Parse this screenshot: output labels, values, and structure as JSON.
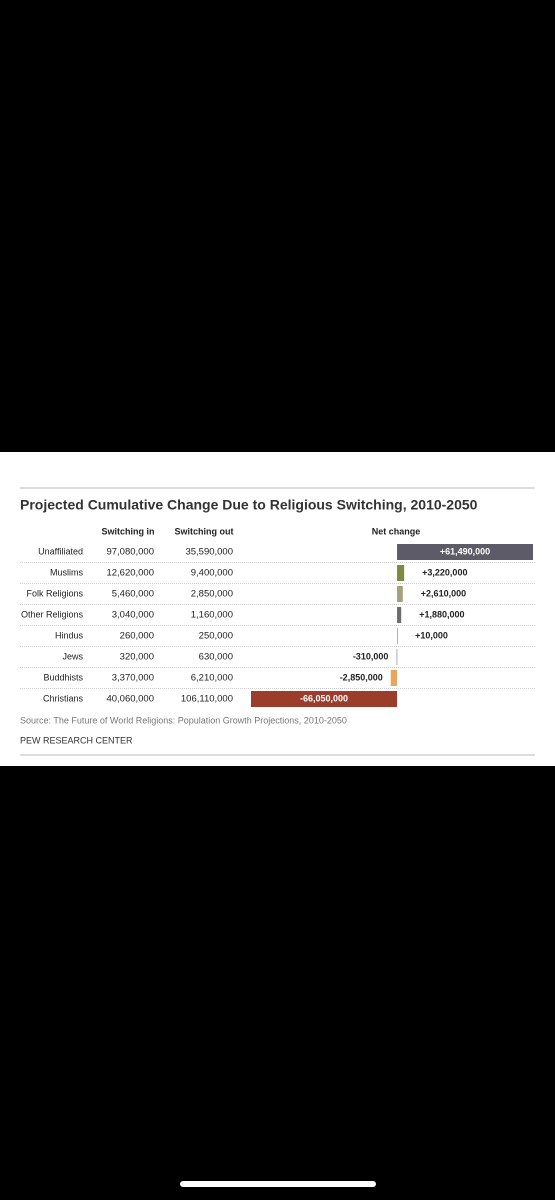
{
  "chart_data": {
    "type": "bar",
    "title": "Projected Cumulative Change Due to Religious Switching, 2010-2050",
    "categories": [
      "Unaffiliated",
      "Muslims",
      "Folk Religions",
      "Other Religions",
      "Hindus",
      "Jews",
      "Buddhists",
      "Christians"
    ],
    "series": [
      {
        "name": "Switching in",
        "values": [
          97080000,
          12620000,
          5460000,
          3040000,
          260000,
          320000,
          3370000,
          40060000
        ],
        "value_labels": [
          "97,080,000",
          "12,620,000",
          "5,460,000",
          "3,040,000",
          "260,000",
          "320,000",
          "3,370,000",
          "40,060,000"
        ]
      },
      {
        "name": "Switching out",
        "values": [
          35590000,
          9400000,
          2850000,
          1160000,
          250000,
          630000,
          6210000,
          106110000
        ],
        "value_labels": [
          "35,590,000",
          "9,400,000",
          "2,850,000",
          "1,160,000",
          "250,000",
          "630,000",
          "6,210,000",
          "106,110,000"
        ]
      },
      {
        "name": "Net change",
        "values": [
          61490000,
          3220000,
          2610000,
          1880000,
          10000,
          -310000,
          -2850000,
          -66050000
        ],
        "value_labels": [
          "+61,490,000",
          "+3,220,000",
          "+2,610,000",
          "+1,880,000",
          "+10,000",
          "-310,000",
          "-2,850,000",
          "-66,050,000"
        ],
        "colors": [
          "#5e5b68",
          "#7d8a40",
          "#a6a17b",
          "#6d6d70",
          "#b0b0b0",
          "#b0b0b0",
          "#e9a55c",
          "#9c3c2b"
        ]
      }
    ],
    "xlim": [
      -66050000,
      61490000
    ],
    "source": "Source: The Future of World Religions: Population Growth Projections, 2010-2050",
    "publisher": "PEW RESEARCH CENTER"
  }
}
